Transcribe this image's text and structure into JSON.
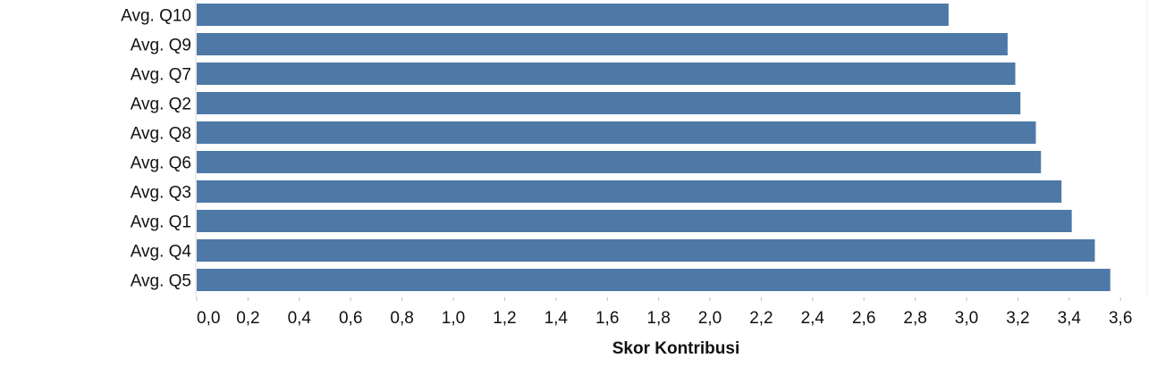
{
  "chart_data": {
    "type": "bar",
    "orientation": "horizontal",
    "title": "",
    "xlabel": "Skor Kontribusi",
    "ylabel": "",
    "categories": [
      "Avg. Q10",
      "Avg. Q9",
      "Avg. Q7",
      "Avg. Q2",
      "Avg. Q8",
      "Avg. Q6",
      "Avg. Q3",
      "Avg. Q1",
      "Avg. Q4",
      "Avg. Q5"
    ],
    "values": [
      2.93,
      3.16,
      3.19,
      3.21,
      3.27,
      3.29,
      3.37,
      3.41,
      3.5,
      3.56
    ],
    "xlim": [
      0,
      3.6
    ],
    "xticks": [
      "0,0",
      "0,2",
      "0,4",
      "0,6",
      "0,8",
      "1,0",
      "1,2",
      "1,4",
      "1,6",
      "1,8",
      "2,0",
      "2,2",
      "2,4",
      "2,6",
      "2,8",
      "3,0",
      "3,2",
      "3,4",
      "3,6"
    ],
    "grid": false,
    "bar_color": "#4e79a7"
  }
}
